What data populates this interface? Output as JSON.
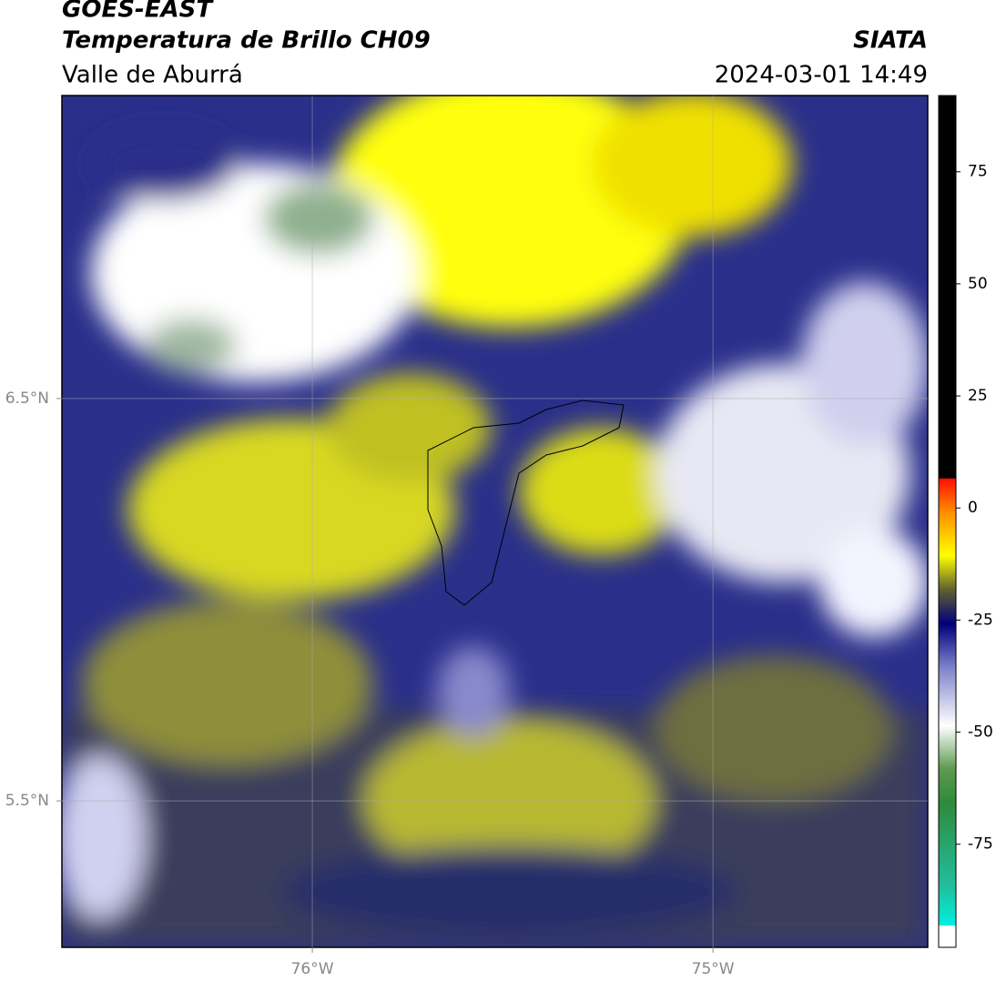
{
  "header": {
    "title": "GOES-EAST",
    "subtitle": "Temperatura de Brillo CH09",
    "region": "Valle de Aburrá",
    "source": "SIATA",
    "datetime": "2024-03-01 14:49"
  },
  "map": {
    "xlim": [
      -76.625,
      -74.464
    ],
    "ylim": [
      5.136,
      7.253
    ],
    "xticks": [
      {
        "value": -76,
        "label": "76°W"
      },
      {
        "value": -75,
        "label": "75°W"
      }
    ],
    "yticks": [
      {
        "value": 6.5,
        "label": "6.5°N"
      },
      {
        "value": 5.5,
        "label": "5.5°N"
      }
    ],
    "grid": true
  },
  "colorbar": {
    "lim": [
      -98,
      92
    ],
    "ticks": [
      75,
      50,
      25,
      0,
      -25,
      -50,
      -75
    ]
  }
}
